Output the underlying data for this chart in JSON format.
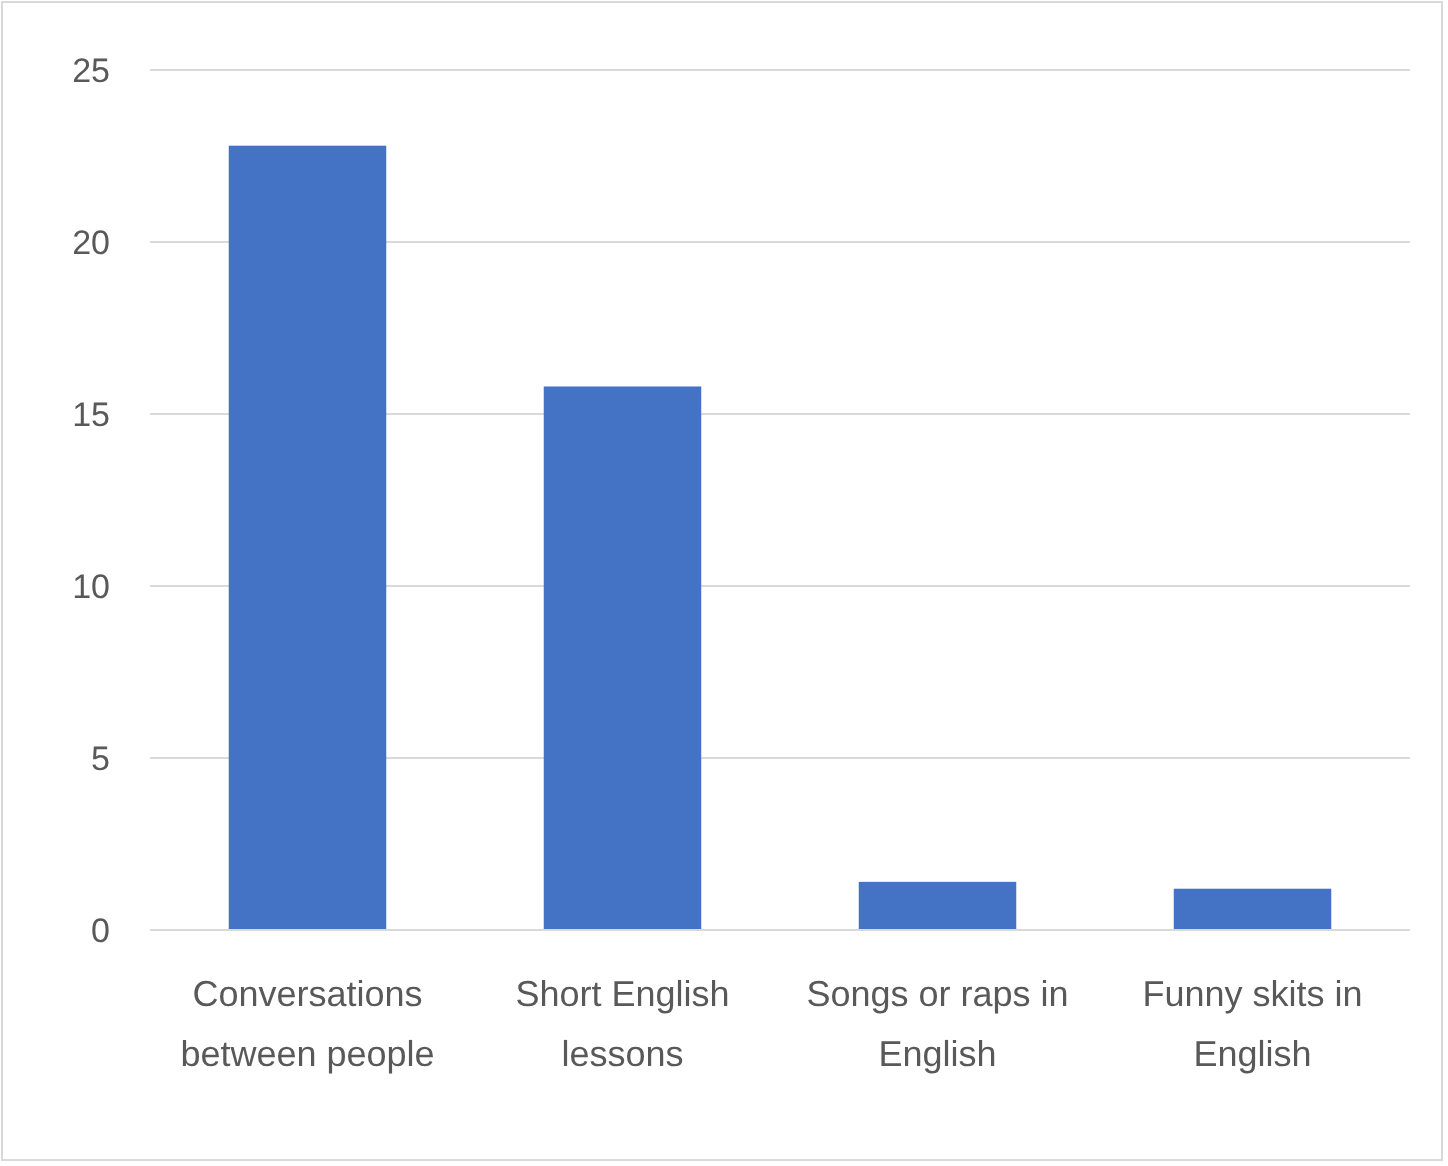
{
  "chart_data": {
    "type": "bar",
    "categories": [
      "Conversations between people",
      "Short English lessons",
      "Songs or raps in English",
      "Funny skits in English"
    ],
    "values": [
      22.8,
      15.8,
      1.4,
      1.2
    ],
    "color": "#4472c4",
    "ylim": [
      0,
      25
    ],
    "yticks": [
      0,
      5,
      10,
      15,
      20,
      25
    ],
    "grid": "y"
  }
}
